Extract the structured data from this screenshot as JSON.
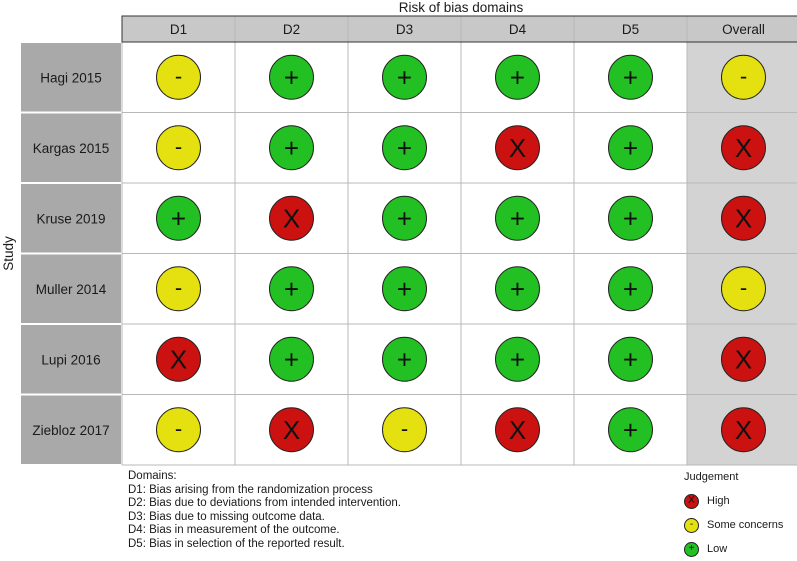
{
  "chart_data": {
    "type": "table",
    "title": "Risk of bias domains",
    "ylabel": "Study",
    "columns": [
      "D1",
      "D2",
      "D3",
      "D4",
      "D5",
      "Overall"
    ],
    "rows": [
      {
        "study": "Hagi 2015",
        "judgements": [
          "-",
          "+",
          "+",
          "+",
          "+",
          "-"
        ]
      },
      {
        "study": "Kargas 2015",
        "judgements": [
          "-",
          "+",
          "+",
          "X",
          "+",
          "X"
        ]
      },
      {
        "study": "Kruse 2019",
        "judgements": [
          "+",
          "X",
          "+",
          "+",
          "+",
          "X"
        ]
      },
      {
        "study": "Muller 2014",
        "judgements": [
          "-",
          "+",
          "+",
          "+",
          "+",
          "-"
        ]
      },
      {
        "study": "Lupi 2016",
        "judgements": [
          "X",
          "+",
          "+",
          "+",
          "+",
          "X"
        ]
      },
      {
        "study": "Ziebloz 2017",
        "judgements": [
          "-",
          "X",
          "-",
          "X",
          "+",
          "X"
        ]
      }
    ],
    "colors": {
      "high": "#cc1111",
      "some": "#e5e010",
      "low": "#22c022",
      "header_bg": "#c8c8c8",
      "study_bg": "#a9a9a9",
      "overall_bg": "#d3d3d3"
    }
  },
  "footer": {
    "domains_title": "Domains:",
    "domains": [
      "D1: Bias arising from the randomization process",
      "D2: Bias due to deviations from intended intervention.",
      "D3: Bias due to missing outcome data.",
      "D4: Bias in measurement of the outcome.",
      "D5: Bias in selection of the reported result."
    ]
  },
  "legend": {
    "title": "Judgement",
    "items": [
      {
        "symbol": "X",
        "label": "High",
        "color": "#cc1111"
      },
      {
        "symbol": "-",
        "label": "Some concerns",
        "color": "#e5e010"
      },
      {
        "symbol": "+",
        "label": "Low",
        "color": "#22c022"
      }
    ]
  }
}
